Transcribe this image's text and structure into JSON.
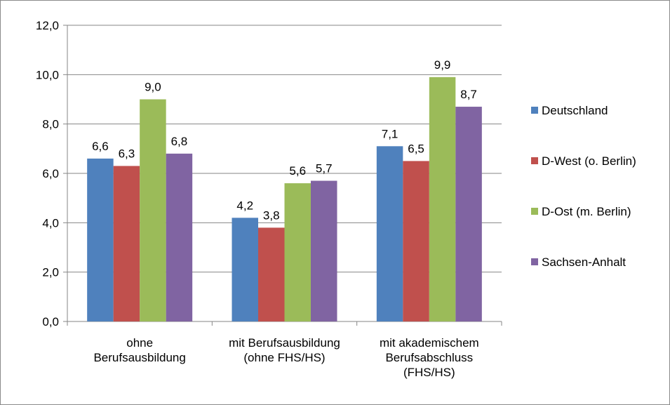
{
  "chart_data": {
    "type": "bar",
    "categories": [
      [
        "ohne",
        "Berufsausbildung"
      ],
      [
        "mit Berufsausbildung",
        "(ohne FHS/HS)"
      ],
      [
        "mit akademischem",
        "Berufsabschluss",
        "(FHS/HS)"
      ]
    ],
    "series": [
      {
        "name": "Deutschland",
        "color": "#4F81BD",
        "values": [
          6.6,
          4.2,
          7.1
        ],
        "labels": [
          "6,6",
          "4,2",
          "7,1"
        ]
      },
      {
        "name": "D-West (o. Berlin)",
        "color": "#C0504D",
        "values": [
          6.3,
          3.8,
          6.5
        ],
        "labels": [
          "6,3",
          "3,8",
          "6,5"
        ]
      },
      {
        "name": "D-Ost (m. Berlin)",
        "color": "#9BBB59",
        "values": [
          9.0,
          5.6,
          9.9
        ],
        "labels": [
          "9,0",
          "5,6",
          "9,9"
        ]
      },
      {
        "name": "Sachsen-Anhalt",
        "color": "#8064A2",
        "values": [
          6.8,
          5.7,
          8.7
        ],
        "labels": [
          "6,8",
          "5,7",
          "8,7"
        ]
      }
    ],
    "ylim": [
      0,
      12
    ],
    "yticks": [
      0,
      2,
      4,
      6,
      8,
      10,
      12
    ],
    "ytick_labels": [
      "0,0",
      "2,0",
      "4,0",
      "6,0",
      "8,0",
      "10,0",
      "12,0"
    ],
    "grid": true,
    "legend_position": "right",
    "title": "",
    "xlabel": "",
    "ylabel": ""
  }
}
